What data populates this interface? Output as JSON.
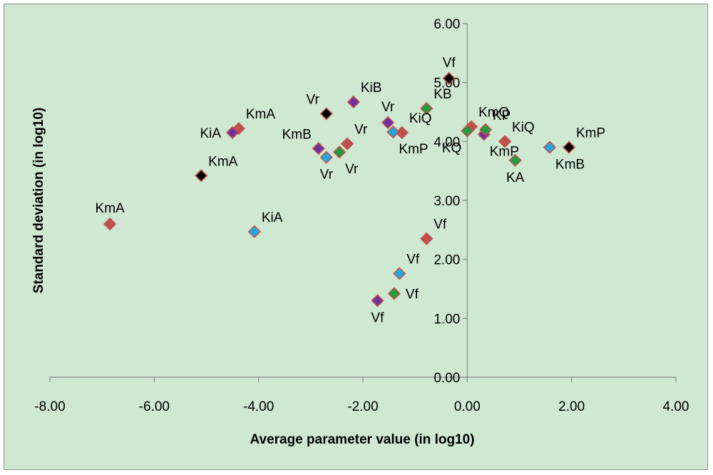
{
  "chart_data": {
    "type": "scatter",
    "title": "",
    "xlabel": "Average parameter value (in log10)",
    "ylabel": "Standard deviation (in log10)",
    "xlim": [
      -8,
      4
    ],
    "ylim": [
      0,
      6
    ],
    "grid": false,
    "x_ticks": [
      "-8.00",
      "-6.00",
      "-4.00",
      "-2.00",
      "0.00",
      "2.00",
      "4.00"
    ],
    "y_ticks": [
      "0.00",
      "1.00",
      "2.00",
      "3.00",
      "4.00",
      "5.00",
      "6.00"
    ],
    "series": [
      {
        "name": "red",
        "color": "#c0504d",
        "border": "#c0504d",
        "points": [
          {
            "x": -6.85,
            "y": 2.6,
            "label": "KmA",
            "pos": "above"
          },
          {
            "x": -4.38,
            "y": 4.22,
            "label": "KmA",
            "pos": "above-right"
          },
          {
            "x": -2.3,
            "y": 3.96,
            "label": "Vr",
            "pos": "above-right"
          },
          {
            "x": -1.25,
            "y": 4.15,
            "label": "KiQ",
            "pos": "above-right"
          },
          {
            "x": -0.78,
            "y": 2.35,
            "label": "Vf",
            "pos": "above-right"
          },
          {
            "x": 0.08,
            "y": 4.25,
            "label": "KmQ",
            "pos": "above-right"
          },
          {
            "x": 0.72,
            "y": 4.0,
            "label": "KiQ",
            "pos": "above-right"
          }
        ]
      },
      {
        "name": "black",
        "color": "#000000",
        "border": "#c0504d",
        "points": [
          {
            "x": -5.1,
            "y": 3.42,
            "label": "KmA",
            "pos": "above-right"
          },
          {
            "x": -2.7,
            "y": 4.47,
            "label": "Vr",
            "pos": "above-left"
          },
          {
            "x": -0.35,
            "y": 5.07,
            "label": "Vf",
            "pos": "above"
          },
          {
            "x": 1.95,
            "y": 3.9,
            "label": "KmP",
            "pos": "above-right"
          }
        ]
      },
      {
        "name": "purple",
        "color": "#7030a0",
        "border": "#c0504d",
        "points": [
          {
            "x": -4.5,
            "y": 4.15,
            "label": "KiA",
            "pos": "left"
          },
          {
            "x": -2.85,
            "y": 3.88,
            "label": "KmB",
            "pos": "above-left"
          },
          {
            "x": -2.18,
            "y": 4.67,
            "label": "KiB",
            "pos": "above-right"
          },
          {
            "x": -1.52,
            "y": 4.32,
            "label": "Vr",
            "pos": "above"
          },
          {
            "x": -1.72,
            "y": 1.3,
            "label": "Vf",
            "pos": "below"
          },
          {
            "x": 0.32,
            "y": 4.12,
            "label": "KmP",
            "pos": "below-right"
          }
        ]
      },
      {
        "name": "blue",
        "color": "#1fa9e1",
        "border": "#c0504d",
        "points": [
          {
            "x": -4.08,
            "y": 2.47,
            "label": "KiA",
            "pos": "above-right"
          },
          {
            "x": -2.7,
            "y": 3.73,
            "label": "Vr",
            "pos": "below"
          },
          {
            "x": -1.42,
            "y": 4.16,
            "label": "KmP",
            "pos": "below-right"
          },
          {
            "x": -1.3,
            "y": 1.76,
            "label": "Vf",
            "pos": "above-right"
          },
          {
            "x": 1.58,
            "y": 3.9,
            "label": "KmB",
            "pos": "below-right"
          }
        ]
      },
      {
        "name": "green",
        "color": "#1d9d3d",
        "border": "#c0504d",
        "points": [
          {
            "x": -2.45,
            "y": 3.82,
            "label": "Vr",
            "pos": "below-right"
          },
          {
            "x": -1.4,
            "y": 1.42,
            "label": "Vf",
            "pos": "right"
          },
          {
            "x": -0.78,
            "y": 4.56,
            "label": "KB",
            "pos": "above-right"
          },
          {
            "x": 0.0,
            "y": 4.18,
            "label": "KQ",
            "pos": "below-left"
          },
          {
            "x": 0.35,
            "y": 4.2,
            "label": "KP",
            "pos": "above-right"
          },
          {
            "x": 0.92,
            "y": 3.68,
            "label": "KA",
            "pos": "below"
          }
        ]
      }
    ]
  }
}
